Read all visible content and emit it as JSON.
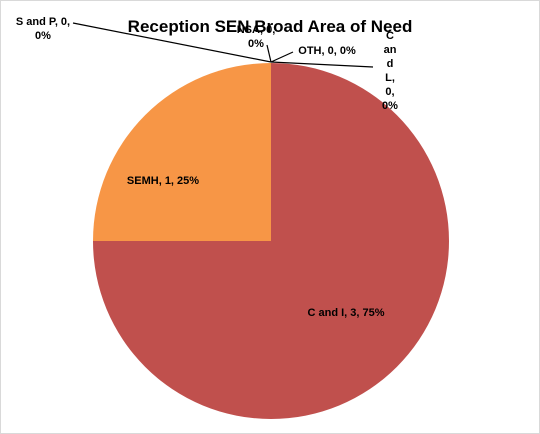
{
  "chart_data": {
    "type": "pie",
    "title": "Reception SEN Broad Area of Need",
    "categories": [
      "C and I",
      "SEMH",
      "S and P",
      "NSA",
      "OTH",
      "C and L"
    ],
    "values": [
      3,
      1,
      0,
      0,
      0,
      0
    ],
    "value_labels": [
      "C and I, 3, 75%",
      "SEMH, 1, 25%",
      "S and P, 0, 0%",
      "NSA, 0, 0%",
      "OTH, 0, 0%",
      "C and L, 0, 0%"
    ],
    "colors": [
      "#c0504d",
      "#f79646",
      "#4f81bd",
      "#9bbb59",
      "#8064a2",
      "#4bacc6"
    ]
  }
}
